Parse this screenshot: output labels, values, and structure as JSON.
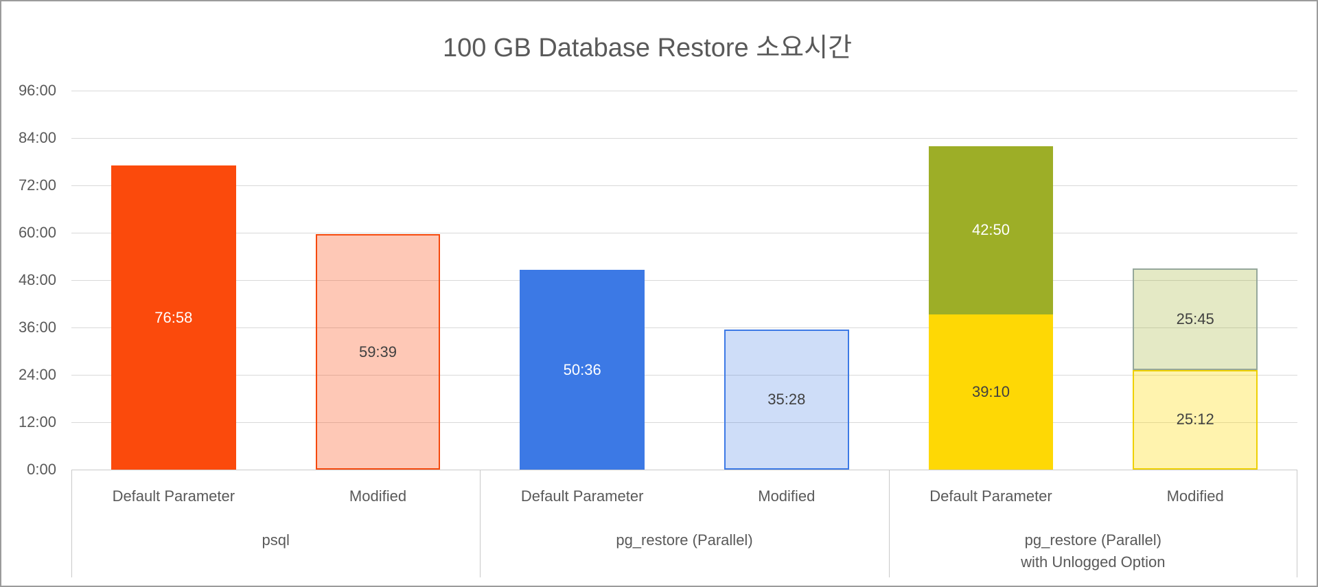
{
  "palette": {
    "text": "#595959",
    "gridline": "#d9d9d9",
    "axis_line": "#c9c9c9",
    "frame_border": "#9b9b9b"
  },
  "chart_data": {
    "type": "bar",
    "title": "100 GB Database Restore 소요시간",
    "value_format": "mm:ss",
    "grid": true,
    "legend": null,
    "y_axis": {
      "min": "0:00",
      "max": "96:00",
      "interval": "12:00",
      "ticks": [
        "96:00",
        "84:00",
        "72:00",
        "60:00",
        "48:00",
        "36:00",
        "24:00",
        "12:00",
        "0:00"
      ]
    },
    "groups": [
      {
        "label": "psql",
        "label_lines": [
          "psql"
        ],
        "bars": [
          {
            "category": "Default Parameter",
            "bar_style": "solid",
            "segments": [
              {
                "value": "76:58",
                "fill": "#fb4a0c",
                "border": "#fb4a0c",
                "label_color": "#ffffff"
              }
            ]
          },
          {
            "category": "Modified",
            "bar_style": "outline",
            "segments": [
              {
                "value": "59:39",
                "fill": "rgba(251,74,12,0.30)",
                "border": "#f5490d",
                "label_color": "#404040"
              }
            ]
          }
        ]
      },
      {
        "label": "pg_restore (Parallel)",
        "label_lines": [
          "pg_restore (Parallel)"
        ],
        "bars": [
          {
            "category": "Default Parameter",
            "bar_style": "solid",
            "segments": [
              {
                "value": "50:36",
                "fill": "#3c79e5",
                "border": "#3c79e5",
                "label_color": "#ffffff"
              }
            ]
          },
          {
            "category": "Modified",
            "bar_style": "outline",
            "segments": [
              {
                "value": "35:28",
                "fill": "rgba(60,121,229,0.25)",
                "border": "#3c79e5",
                "label_color": "#404040"
              }
            ]
          }
        ]
      },
      {
        "label": "pg_restore (Parallel) with Unlogged Option",
        "label_lines": [
          "pg_restore (Parallel)",
          "with Unlogged Option"
        ],
        "bars": [
          {
            "category": "Default Parameter",
            "bar_style": "solid",
            "segments": [
              {
                "value": "39:10",
                "fill": "#fed805",
                "border": "#fed805",
                "label_color": "#404040"
              },
              {
                "value": "42:50",
                "fill": "#9dae27",
                "border": "#9dae27",
                "label_color": "#ffffff"
              }
            ]
          },
          {
            "category": "Modified",
            "bar_style": "outline",
            "segments": [
              {
                "value": "25:12",
                "fill": "rgba(254,217,4,0.32)",
                "border": "#eed002",
                "label_color": "#404040"
              },
              {
                "value": "25:45",
                "fill": "rgba(157,174,39,0.27)",
                "border": "#95a79b",
                "label_color": "#404040"
              }
            ]
          }
        ]
      }
    ]
  }
}
